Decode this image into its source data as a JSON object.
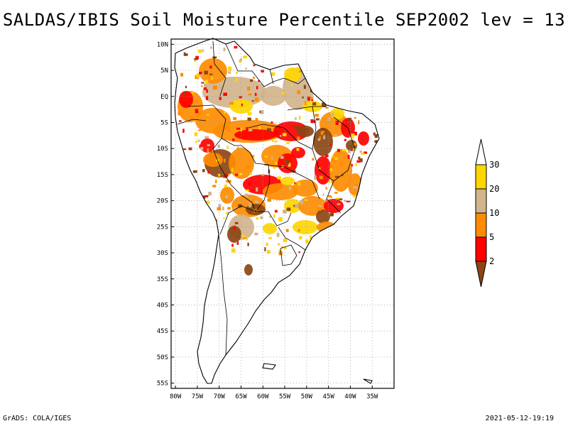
{
  "title": "SALDAS/IBIS Soil Moisture Percentile SEP2002 lev = 13",
  "footer": {
    "left": "GrADS: COLA/IGES",
    "right": "2021-05-12-19:19"
  },
  "map": {
    "region": "South America",
    "lon_range": [
      -81,
      -30
    ],
    "lat_range": [
      -56,
      11
    ],
    "lat_ticks": [
      {
        "value": 10,
        "label": "10N"
      },
      {
        "value": 5,
        "label": "5N"
      },
      {
        "value": 0,
        "label": "EQ"
      },
      {
        "value": -5,
        "label": "5S"
      },
      {
        "value": -10,
        "label": "10S"
      },
      {
        "value": -15,
        "label": "15S"
      },
      {
        "value": -20,
        "label": "20S"
      },
      {
        "value": -25,
        "label": "25S"
      },
      {
        "value": -30,
        "label": "30S"
      },
      {
        "value": -35,
        "label": "35S"
      },
      {
        "value": -40,
        "label": "40S"
      },
      {
        "value": -45,
        "label": "45S"
      },
      {
        "value": -50,
        "label": "50S"
      },
      {
        "value": -55,
        "label": "55S"
      }
    ],
    "lon_ticks": [
      {
        "value": -80,
        "label": "80W"
      },
      {
        "value": -75,
        "label": "75W"
      },
      {
        "value": -70,
        "label": "70W"
      },
      {
        "value": -65,
        "label": "65W"
      },
      {
        "value": -60,
        "label": "60W"
      },
      {
        "value": -55,
        "label": "55W"
      },
      {
        "value": -50,
        "label": "50W"
      },
      {
        "value": -45,
        "label": "45W"
      },
      {
        "value": -40,
        "label": "40W"
      },
      {
        "value": -35,
        "label": "35W"
      }
    ],
    "grid": true
  },
  "legend": {
    "levels": [
      "2",
      "5",
      "10",
      "20",
      "30"
    ],
    "colors": [
      "#8b4513",
      "#ff0000",
      "#ff8c00",
      "#d2b48c",
      "#ffd700",
      "#ffffff"
    ]
  },
  "colors": {
    "dark_brown": "#8b4513",
    "red": "#ff0000",
    "orange": "#ff8c00",
    "tan": "#d2b48c",
    "gold": "#ffd700"
  }
}
